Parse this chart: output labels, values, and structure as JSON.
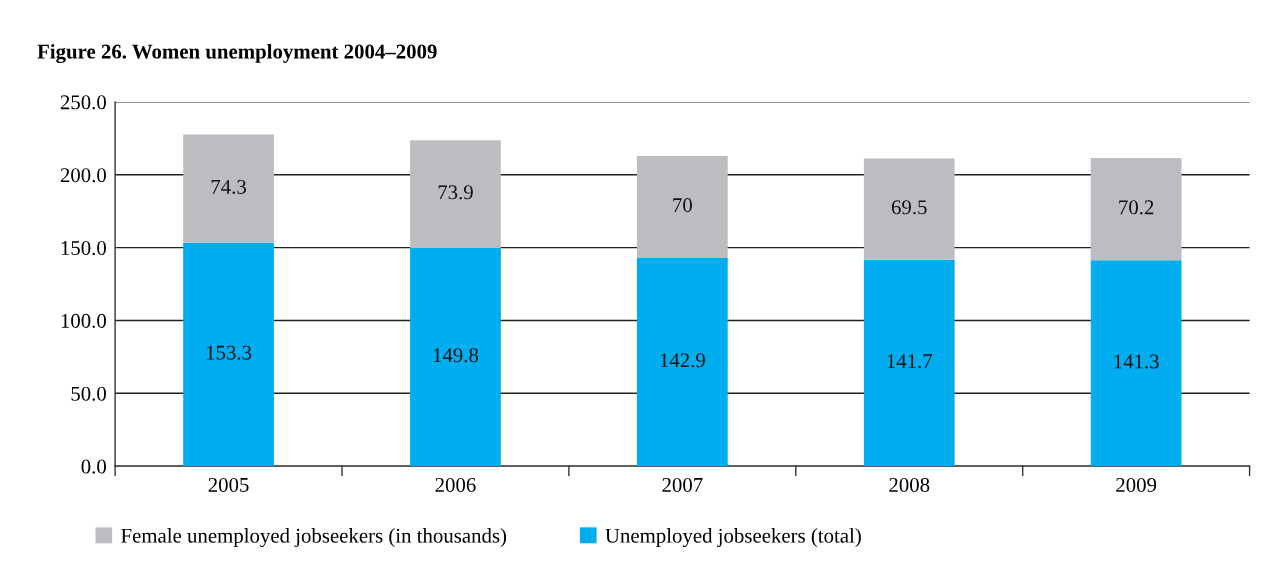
{
  "chart_data": {
    "type": "bar",
    "title": "Figure 26. Women unemployment 2004–2009",
    "categories": [
      "2005",
      "2006",
      "2007",
      "2008",
      "2009"
    ],
    "stacked": true,
    "series": [
      {
        "name": "Unemployed jobseekers (total)",
        "color": "#00aeef",
        "values": [
          153.3,
          149.8,
          142.9,
          141.7,
          141.3
        ]
      },
      {
        "name": "Female unemployed jobseekers (in thousands)",
        "color": "#bcbdc0",
        "values": [
          74.3,
          73.9,
          70,
          69.5,
          70.2
        ]
      }
    ],
    "ylim": [
      0,
      250
    ],
    "yticks": [
      {
        "value": 0,
        "label": "0.0"
      },
      {
        "value": 50,
        "label": "50.0"
      },
      {
        "value": 100,
        "label": "100.0"
      },
      {
        "value": 150,
        "label": "150.0"
      },
      {
        "value": 200,
        "label": "200.0"
      },
      {
        "value": 250,
        "label": "250.0"
      }
    ],
    "grid": "y",
    "legend": "bottom",
    "data_labels": true
  }
}
